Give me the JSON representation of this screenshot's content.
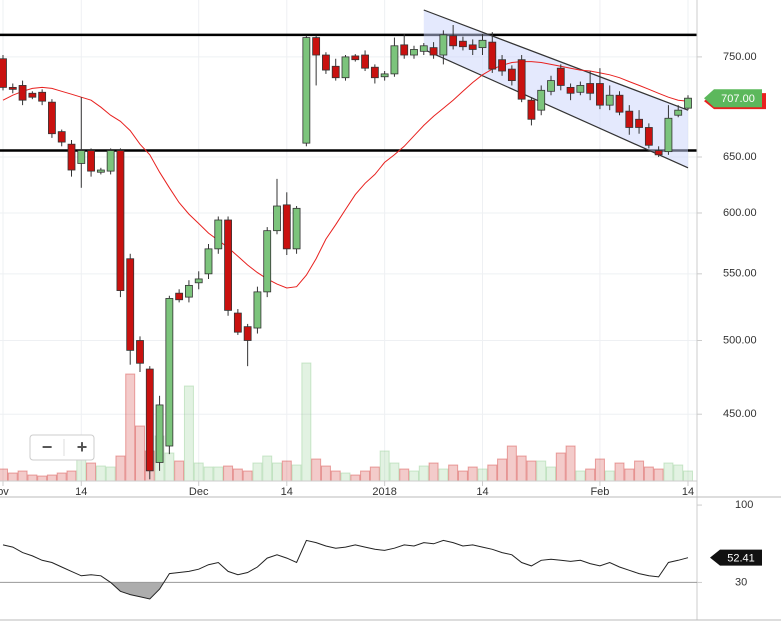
{
  "chart_data": [
    {
      "type": "candlestick",
      "categories": [
        "ov",
        null,
        null,
        null,
        null,
        null,
        null,
        null,
        "14",
        null,
        null,
        null,
        null,
        null,
        null,
        null,
        null,
        null,
        null,
        null,
        "Dec",
        null,
        null,
        null,
        null,
        null,
        null,
        null,
        null,
        "14",
        null,
        null,
        null,
        null,
        null,
        null,
        null,
        null,
        null,
        "2018",
        null,
        null,
        null,
        null,
        null,
        null,
        null,
        null,
        null,
        "14",
        null,
        null,
        null,
        null,
        null,
        null,
        null,
        null,
        null,
        null,
        null,
        "Feb",
        null,
        null,
        null,
        null,
        null,
        null,
        null,
        null,
        "14"
      ],
      "open": [
        748,
        718,
        720,
        712,
        713,
        703,
        674,
        662,
        644,
        656,
        636,
        637,
        656,
        562,
        500,
        480,
        420,
        430,
        535,
        532,
        543,
        550,
        570,
        594,
        520,
        510,
        509,
        536,
        585,
        607,
        570,
        663,
        771,
        752,
        740,
        728,
        751,
        752,
        739,
        729,
        732,
        763,
        752,
        756,
        760,
        752,
        773,
        767,
        763,
        760,
        766,
        747,
        737,
        747,
        705,
        695,
        714,
        738,
        718,
        713,
        722,
        722,
        700,
        710,
        694,
        686,
        678,
        656,
        655,
        690,
        697
      ],
      "high": [
        752,
        722,
        725,
        714,
        716,
        706,
        676,
        666,
        708,
        658,
        640,
        658,
        658,
        566,
        503,
        482,
        462,
        533,
        538,
        545,
        552,
        574,
        597,
        597,
        523,
        512,
        540,
        588,
        630,
        618,
        606,
        773,
        773,
        755,
        748,
        752,
        753,
        757,
        742,
        735,
        771,
        775,
        762,
        765,
        766,
        779,
        785,
        772,
        769,
        775,
        777,
        752,
        741,
        752,
        708,
        720,
        730,
        742,
        722,
        724,
        735,
        738,
        720,
        714,
        700,
        695,
        682,
        660,
        700,
        700,
        710
      ],
      "low": [
        715,
        712,
        700,
        706,
        700,
        668,
        660,
        632,
        622,
        632,
        634,
        634,
        532,
        483,
        478,
        410,
        415,
        425,
        528,
        528,
        538,
        546,
        566,
        518,
        504,
        482,
        505,
        532,
        582,
        565,
        566,
        660,
        720,
        732,
        725,
        725,
        745,
        735,
        722,
        725,
        729,
        748,
        748,
        752,
        748,
        742,
        758,
        757,
        752,
        752,
        733,
        730,
        720,
        703,
        680,
        690,
        710,
        715,
        705,
        710,
        705,
        696,
        695,
        690,
        671,
        672,
        658,
        650,
        652,
        688,
        695
      ],
      "close": [
        718,
        716,
        705,
        708,
        704,
        672,
        664,
        638,
        656,
        637,
        638,
        656,
        537,
        493,
        484,
        415,
        456,
        531,
        530,
        541,
        546,
        570,
        594,
        522,
        506,
        500,
        536,
        585,
        606,
        570,
        604,
        771,
        752,
        736,
        728,
        750,
        747,
        738,
        728,
        732,
        762,
        752,
        758,
        762,
        752,
        774,
        762,
        761,
        758,
        768,
        737,
        735,
        725,
        706,
        686,
        715,
        725,
        720,
        712,
        720,
        712,
        700,
        710,
        693,
        678,
        678,
        661,
        652,
        687,
        695,
        707
      ],
      "volume": [
        12,
        8,
        10,
        6,
        5,
        6,
        8,
        10,
        22,
        18,
        15,
        14,
        25,
        107,
        55,
        30,
        45,
        28,
        20,
        95,
        18,
        14,
        14,
        15,
        12,
        10,
        18,
        25,
        18,
        20,
        16,
        118,
        22,
        15,
        10,
        8,
        6,
        10,
        14,
        30,
        18,
        12,
        10,
        15,
        18,
        12,
        16,
        10,
        14,
        12,
        16,
        22,
        35,
        25,
        20,
        20,
        14,
        28,
        35,
        10,
        12,
        22,
        10,
        18,
        12,
        20,
        14,
        12,
        18,
        16,
        10
      ],
      "ma": {
        "color": "#e8211f",
        "values": [
          705,
          710,
          714,
          717,
          718,
          717,
          714,
          711,
          708,
          705,
          698,
          690,
          684,
          675,
          662,
          652,
          636,
          622,
          609,
          599,
          591,
          583,
          577,
          571,
          564,
          557,
          551,
          546,
          542,
          539,
          540,
          549,
          562,
          578,
          590,
          603,
          616,
          626,
          634,
          645,
          652,
          660,
          670,
          680,
          689,
          697,
          705,
          714,
          723,
          731,
          737,
          741,
          744,
          745,
          745,
          744,
          742,
          740,
          738,
          736,
          735,
          733,
          731,
          728,
          724,
          720,
          716,
          712,
          708,
          705,
          704
        ]
      },
      "up_color": "#7cc47c",
      "down_color": "#c9110f",
      "ylim": [
        409.6,
        802
      ],
      "log_scale": true,
      "grid": true,
      "yticks": [
        {
          "value": 450,
          "label": "450.00"
        },
        {
          "value": 500,
          "label": "500.00"
        },
        {
          "value": 550,
          "label": "550.00"
        },
        {
          "value": 600,
          "label": "600.00"
        },
        {
          "value": 650,
          "label": "650.00"
        },
        {
          "value": 750,
          "label": "750.00"
        }
      ],
      "levels": [
        774,
        656
      ],
      "channel": {
        "x": [
          43,
          70
        ],
        "upper": [
          802,
          695
        ],
        "lower": [
          758,
          640
        ]
      },
      "last_price": {
        "value": 707,
        "label": "707.00"
      }
    },
    {
      "type": "line",
      "values": [
        64,
        62,
        57,
        54,
        50,
        48,
        44,
        40,
        36,
        37,
        36,
        30,
        22,
        19,
        17,
        15,
        24,
        38,
        39,
        40,
        42,
        46,
        48,
        40,
        37,
        39,
        44,
        52,
        55,
        52,
        48,
        68,
        66,
        63,
        61,
        62,
        64,
        62,
        60,
        59,
        61,
        64,
        63,
        66,
        65,
        68,
        66,
        63,
        64,
        62,
        60,
        57,
        55,
        48,
        45,
        50,
        51,
        50,
        49,
        50,
        47,
        45,
        48,
        44,
        41,
        38,
        36,
        35,
        48,
        50,
        52.41
      ],
      "color": "#222222",
      "ylim": [
        -4,
        106.4
      ],
      "yticks": [
        100,
        30
      ],
      "threshold": 30
    }
  ],
  "controls": [
    "−",
    "+"
  ]
}
